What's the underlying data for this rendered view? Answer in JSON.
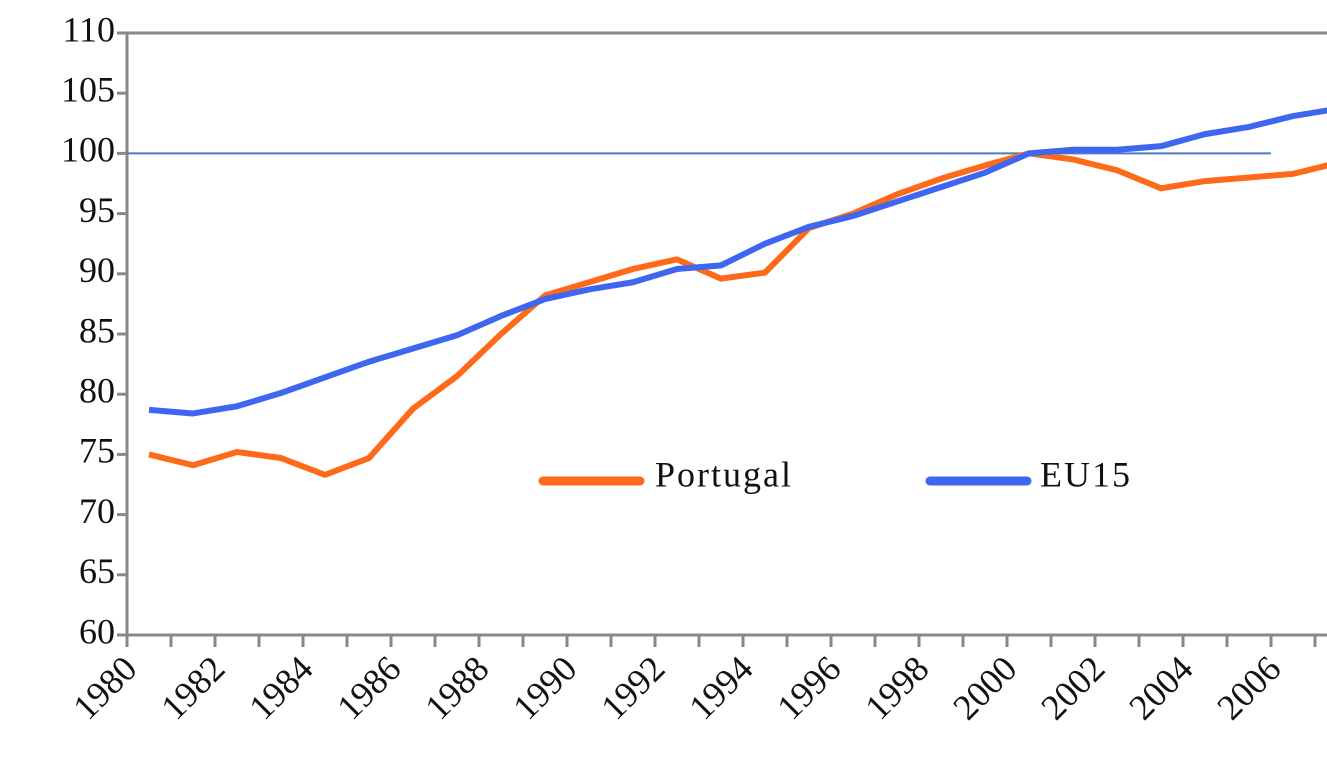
{
  "chart_data": {
    "type": "line",
    "categories": [
      "1980",
      null,
      "1982",
      null,
      "1984",
      null,
      "1986",
      null,
      "1988",
      null,
      "1990",
      null,
      "1992",
      null,
      "1994",
      null,
      "1996",
      null,
      "1998",
      null,
      "2000",
      null,
      "2002",
      null,
      "2004",
      null,
      "2006",
      null
    ],
    "series": [
      {
        "name": "Portugal",
        "color": "#ff6a1a",
        "values": [
          75,
          74.1,
          75.2,
          74.7,
          73.3,
          74.7,
          78.8,
          81.5,
          85,
          88.2,
          89.3,
          90.4,
          91.2,
          89.6,
          90.1,
          93.8,
          95,
          96.6,
          97.9,
          99,
          100,
          99.5,
          98.6,
          97.1,
          97.7,
          98,
          98.3,
          99.2
        ]
      },
      {
        "name": "EU15",
        "color": "#3f66f0",
        "values": [
          78.7,
          78.4,
          79,
          80.1,
          81.4,
          82.7,
          83.8,
          84.9,
          86.5,
          87.9,
          88.7,
          89.3,
          90.4,
          90.7,
          92.5,
          93.9,
          94.8,
          96,
          97.2,
          98.4,
          100,
          100.3,
          100.3,
          100.6,
          101.6,
          102.2,
          103.1,
          103.7
        ]
      }
    ],
    "reference_line": {
      "value": 100,
      "color": "#4a7bc0"
    },
    "ylim": [
      60,
      110
    ],
    "yticks": [
      60,
      65,
      70,
      75,
      80,
      85,
      90,
      95,
      100,
      105,
      110
    ],
    "legend": "center"
  }
}
